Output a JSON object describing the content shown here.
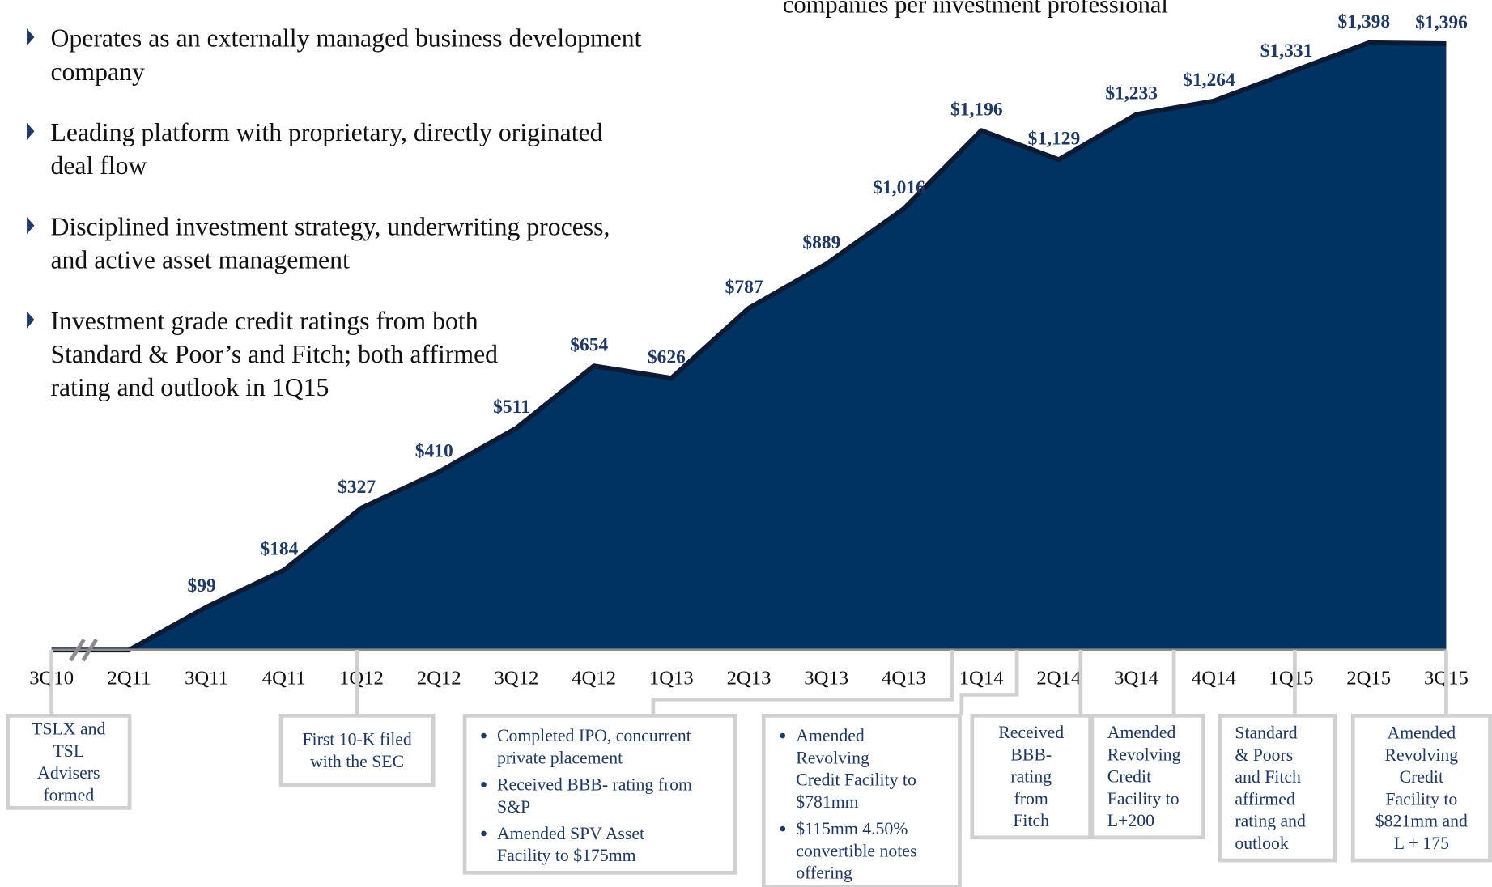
{
  "header": {
    "text": "companies per investment professional"
  },
  "bullets": [
    [
      "Operates as an externally managed business development",
      "company"
    ],
    [
      "Leading platform with proprietary, directly originated",
      "deal flow"
    ],
    [
      "Disciplined investment strategy, underwriting process,",
      "and active asset management"
    ],
    [
      "Investment grade credit ratings from both",
      "Standard & Poor’s and Fitch; both affirmed",
      "rating and outlook in 1Q15"
    ]
  ],
  "chart_data": {
    "type": "area",
    "categories": [
      "3Q10",
      "2Q11",
      "3Q11",
      "4Q11",
      "1Q12",
      "2Q12",
      "3Q12",
      "4Q12",
      "1Q13",
      "2Q13",
      "3Q13",
      "4Q13",
      "1Q14",
      "2Q14",
      "3Q14",
      "4Q14",
      "1Q15",
      "2Q15",
      "3Q15"
    ],
    "values": [
      0,
      0,
      99,
      184,
      327,
      410,
      511,
      654,
      626,
      787,
      889,
      1016,
      1196,
      1129,
      1233,
      1264,
      1331,
      1398,
      1396
    ],
    "value_labels": [
      null,
      null,
      "$99",
      "$184",
      "$327",
      "$410",
      "$511",
      "$654",
      "$626",
      "$787",
      "$889",
      "$1,016",
      "$1,196",
      "$1,129",
      "$1,233",
      "$1,264",
      "$1,331",
      "$1,398",
      "$1,396"
    ],
    "color": "#003262",
    "ylim": [
      0,
      1400
    ]
  },
  "annotations": [
    {
      "lines": [
        "TSLX and",
        "TSL",
        "Advisers",
        "formed"
      ]
    },
    {
      "lines": [
        "First 10-K filed",
        "with the SEC"
      ]
    },
    {
      "bullets": [
        [
          "Completed IPO, concurrent",
          "private placement"
        ],
        [
          "Received BBB- rating from",
          "S&P"
        ],
        [
          "Amended SPV Asset",
          "Facility to $175mm"
        ]
      ]
    },
    {
      "bullets": [
        [
          "Amended",
          "Revolving",
          "Credit Facility to",
          "$781mm"
        ],
        [
          "$115mm 4.50%",
          "convertible notes",
          "offering"
        ]
      ]
    },
    {
      "lines": [
        "Received",
        "BBB-",
        "rating",
        "from",
        "Fitch"
      ]
    },
    {
      "lines": [
        "Amended",
        "Revolving",
        "Credit",
        "Facility to",
        "L+200"
      ]
    },
    {
      "lines": [
        "Standard",
        "& Poors",
        "and Fitch",
        "affirmed",
        "rating and",
        "outlook"
      ]
    },
    {
      "lines": [
        "Amended",
        "Revolving",
        "Credit",
        "Facility to",
        "$821mm and",
        "L + 175"
      ]
    }
  ]
}
